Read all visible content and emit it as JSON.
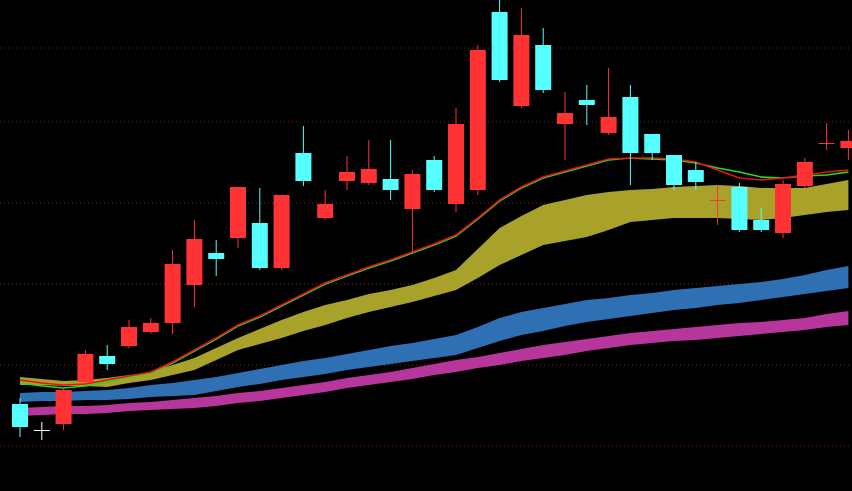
{
  "chart_data": {
    "type": "candlestick",
    "ylim": [
      0,
      491
    ],
    "grid_levels": [
      443,
      369,
      288,
      207,
      126,
      45
    ],
    "grid_color": "#8b1a1a",
    "up_color": "#55ffff",
    "down_color": "#ff3333",
    "doji_color": "#ffffff",
    "candles": {
      "open": [
        64,
        61,
        101,
        137,
        127,
        164,
        168,
        227,
        252,
        232,
        304,
        223,
        296,
        310,
        287,
        319,
        322,
        301,
        317,
        301,
        367,
        441,
        411,
        456,
        401,
        378,
        386,
        374,
        338,
        338,
        306,
        309,
        291,
        261,
        261,
        307,
        329,
        348,
        350
      ],
      "high": [
        93,
        69,
        103,
        141,
        146,
        171,
        173,
        241,
        271,
        251,
        304,
        303,
        296,
        365,
        301,
        335,
        351,
        351,
        321,
        335,
        383,
        446,
        491,
        483,
        463,
        399,
        406,
        423,
        406,
        357,
        336,
        329,
        306,
        308,
        283,
        311,
        333,
        368,
        361
      ],
      "low": [
        54,
        51,
        61,
        106,
        121,
        143,
        157,
        157,
        184,
        215,
        243,
        221,
        221,
        305,
        271,
        301,
        306,
        291,
        238,
        299,
        279,
        296,
        409,
        383,
        398,
        331,
        366,
        356,
        306,
        331,
        301,
        301,
        266,
        259,
        259,
        253,
        303,
        341,
        331
      ],
      "close": [
        87,
        61,
        67,
        109,
        135,
        145,
        159,
        168,
        206,
        238,
        253,
        268,
        223,
        338,
        273,
        310,
        308,
        312,
        282,
        331,
        287,
        301,
        479,
        385,
        446,
        367,
        391,
        358,
        394,
        357,
        336,
        321,
        290,
        304,
        271,
        258,
        305,
        347,
        343
      ]
    },
    "bands": [
      {
        "color": "#a9a22a",
        "upper": [
          114,
          112,
          110,
          111,
          113,
          116,
          119,
          126,
          133,
          143,
          153,
          162,
          171,
          179,
          186,
          191,
          197,
          201,
          206,
          213,
          221,
          242,
          263,
          275,
          286,
          291,
          296,
          299,
          301,
          302,
          304,
          305,
          306,
          305,
          303,
          303,
          303,
          307,
          311
        ],
        "lower": [
          106,
          106,
          105,
          105,
          104,
          108,
          111,
          116,
          121,
          131,
          141,
          147,
          153,
          160,
          166,
          173,
          179,
          184,
          189,
          195,
          201,
          213,
          226,
          236,
          246,
          250,
          254,
          261,
          269,
          271,
          273,
          273,
          273,
          272,
          271,
          273,
          276,
          279,
          281
        ]
      },
      {
        "color": "#2f6fb3",
        "upper": [
          98,
          99,
          99,
          100,
          101,
          103,
          106,
          108,
          111,
          114,
          118,
          122,
          126,
          130,
          133,
          137,
          141,
          145,
          148,
          152,
          156,
          164,
          173,
          179,
          183,
          187,
          191,
          193,
          196,
          198,
          201,
          203,
          205,
          207,
          209,
          212,
          216,
          221,
          225
        ],
        "lower": [
          89,
          90,
          90,
          91,
          91,
          92,
          94,
          95,
          96,
          100,
          104,
          107,
          111,
          114,
          117,
          121,
          124,
          127,
          130,
          133,
          136,
          143,
          150,
          156,
          160,
          165,
          169,
          172,
          175,
          178,
          181,
          183,
          186,
          188,
          191,
          194,
          197,
          200,
          203
        ]
      },
      {
        "color": "#b7369b",
        "upper": [
          83,
          84,
          85,
          85,
          86,
          88,
          89,
          91,
          93,
          95,
          98,
          100,
          103,
          106,
          109,
          113,
          116,
          119,
          123,
          127,
          131,
          134,
          138,
          142,
          146,
          149,
          152,
          155,
          158,
          160,
          162,
          164,
          166,
          168,
          169,
          171,
          173,
          177,
          180
        ],
        "lower": [
          75,
          76,
          77,
          77,
          78,
          80,
          81,
          82,
          83,
          85,
          88,
          90,
          93,
          96,
          99,
          103,
          106,
          109,
          112,
          116,
          119,
          123,
          126,
          130,
          133,
          136,
          140,
          143,
          146,
          148,
          150,
          151,
          153,
          155,
          157,
          159,
          161,
          164,
          166
        ]
      }
    ],
    "lines": [
      {
        "color": "#22dd22",
        "values": [
          108,
          105,
          103,
          105,
          109,
          114,
          118,
          128,
          140,
          152,
          165,
          174,
          185,
          196,
          207,
          215,
          223,
          230,
          238,
          246,
          255,
          272,
          290,
          303,
          313,
          319,
          325,
          331,
          333,
          332,
          331,
          328,
          323,
          319,
          314,
          313,
          315,
          316,
          319
        ]
      },
      {
        "color": "#ee1111",
        "values": [
          111,
          108,
          106,
          107,
          111,
          115,
          119,
          129,
          141,
          153,
          166,
          175,
          186,
          197,
          208,
          216,
          224,
          231,
          239,
          247,
          256,
          273,
          291,
          304,
          314,
          320,
          326,
          332,
          333,
          333,
          332,
          329,
          321,
          313,
          311,
          313,
          316,
          319,
          321
        ]
      }
    ]
  }
}
